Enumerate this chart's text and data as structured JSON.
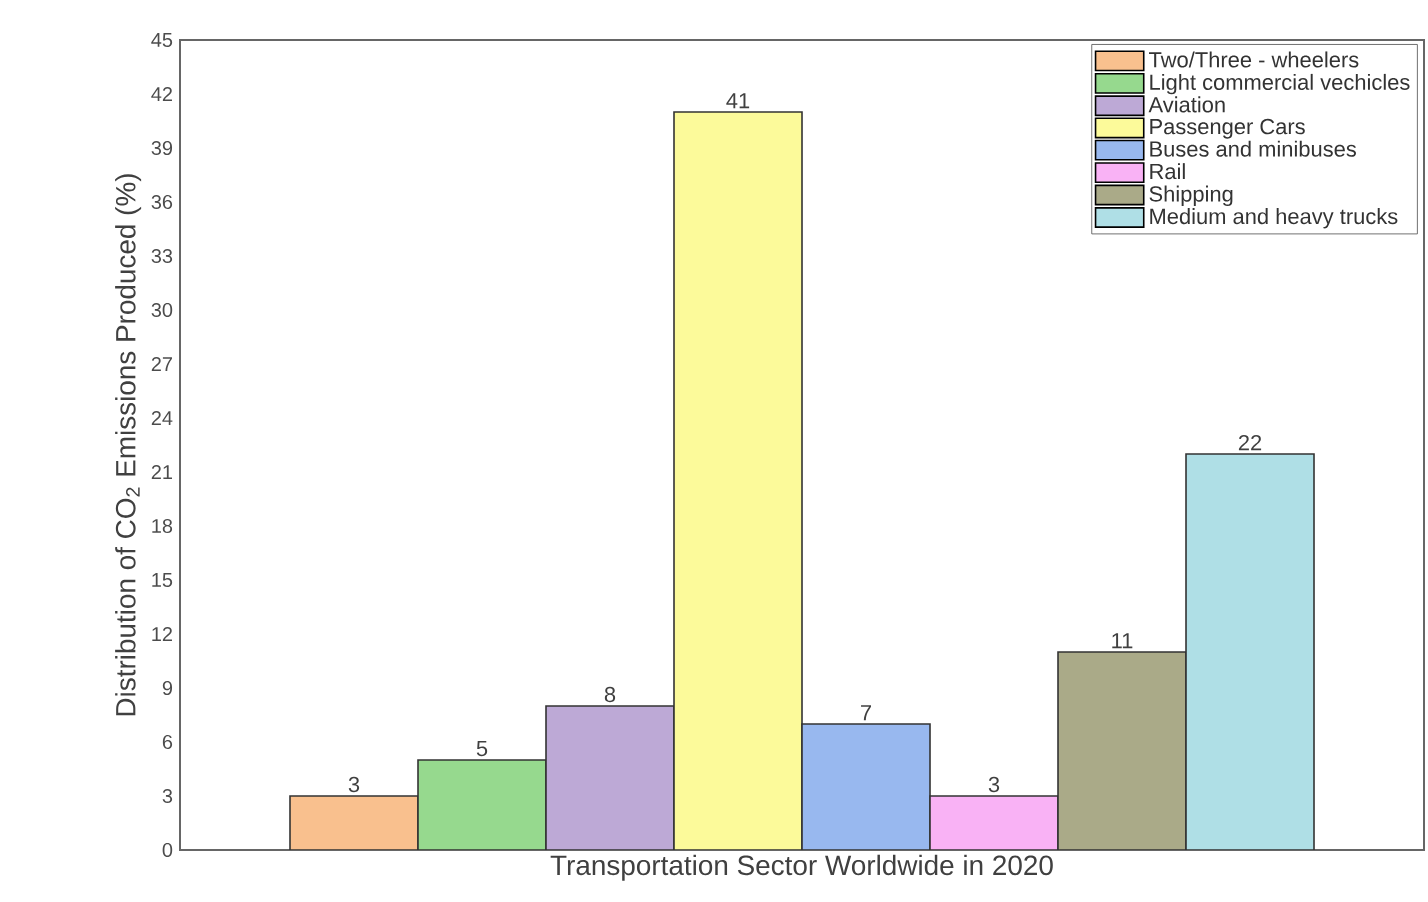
{
  "chart_data": {
    "type": "bar",
    "xlabel": "Transportation Sector Worldwide in 2020",
    "ylabel": "Distribution of CO$_{2}$ Emissions Produced (%)",
    "categories": [
      null
    ],
    "ylim": [
      0,
      45
    ],
    "yticks": [
      0,
      3,
      6,
      9,
      12,
      15,
      18,
      21,
      24,
      27,
      30,
      33,
      36,
      39,
      42,
      45
    ],
    "series": [
      {
        "name": "Two/Three - wheelers",
        "color": "#f9c08e",
        "values": [
          3
        ]
      },
      {
        "name": "Light commercial vechicles",
        "color": "#96d98e",
        "values": [
          5
        ]
      },
      {
        "name": "Aviation",
        "color": "#bda9d6",
        "values": [
          8
        ]
      },
      {
        "name": "Passenger Cars",
        "color": "#fcfa9a",
        "values": [
          41
        ]
      },
      {
        "name": "Buses and minibuses",
        "color": "#98b8ef",
        "values": [
          7
        ]
      },
      {
        "name": "Rail",
        "color": "#f9b2f5",
        "values": [
          3
        ]
      },
      {
        "name": "Shipping",
        "color": "#aaaa88",
        "values": [
          11
        ]
      },
      {
        "name": "Medium and heavy trucks",
        "color": "#afdfe6",
        "values": [
          22
        ]
      }
    ],
    "data_labels": true,
    "legend": "top right"
  }
}
